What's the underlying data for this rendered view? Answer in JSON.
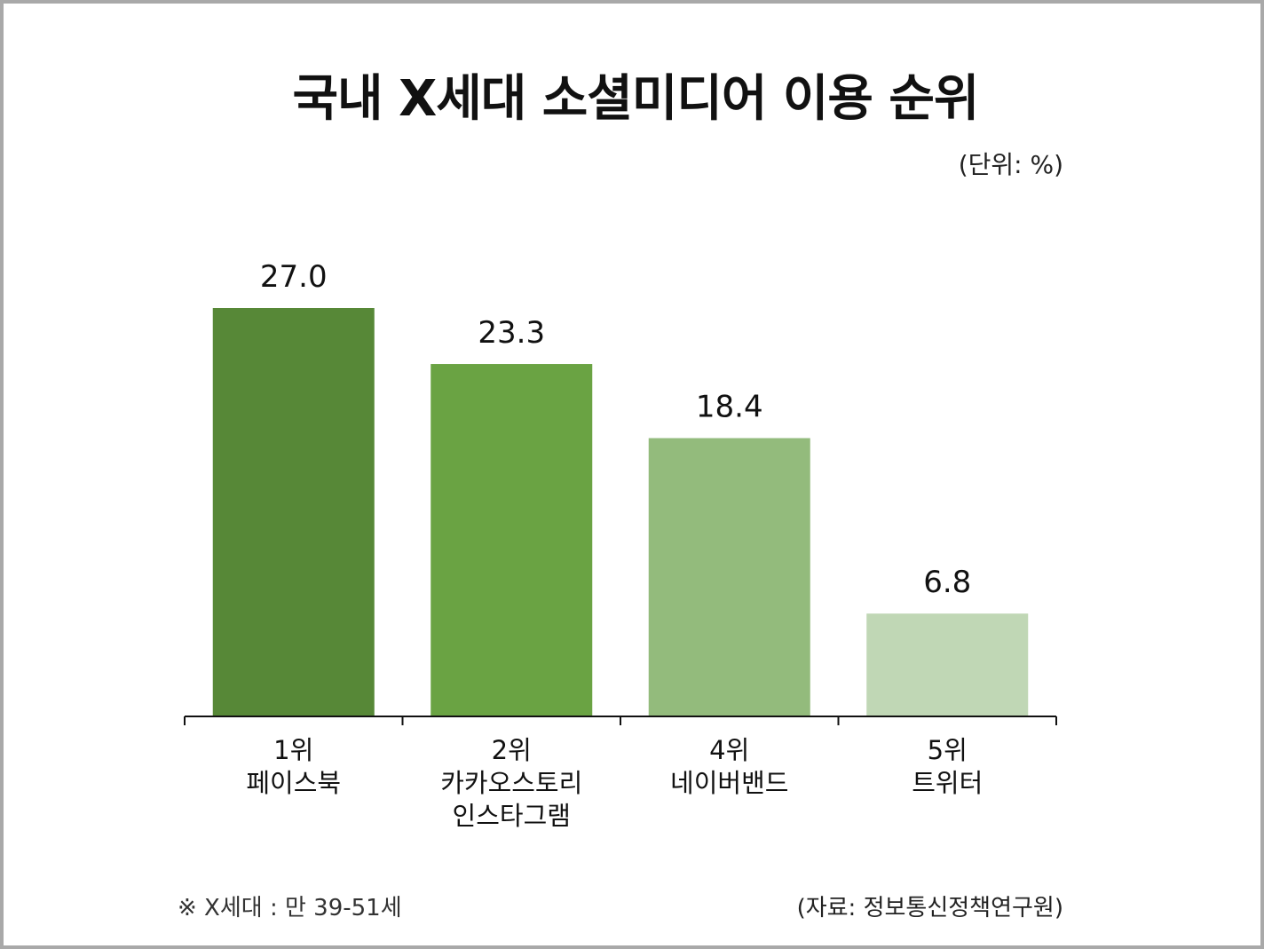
{
  "header": {
    "title": "국내 X세대 소셜미디어 이용 순위",
    "unit": "(단위: %)"
  },
  "footer": {
    "note": "※ X세대 : 만 39-51세",
    "source": "(자료: 정보통신정책연구원)"
  },
  "chart_data": {
    "type": "bar",
    "categories": [
      [
        "1위",
        "페이스북"
      ],
      [
        "2위",
        "카카오스토리",
        "인스타그램"
      ],
      [
        "4위",
        "네이버밴드"
      ],
      [
        "5위",
        "트위터"
      ]
    ],
    "values": [
      27.0,
      23.3,
      18.4,
      6.8
    ],
    "value_labels": [
      "27.0",
      "23.3",
      "18.4",
      "6.8"
    ],
    "bar_colors": [
      "#578837",
      "#6aa343",
      "#93bb7c",
      "#c0d7b5"
    ],
    "ylim": [
      0,
      27.0
    ],
    "grid": false,
    "legend": "none"
  }
}
